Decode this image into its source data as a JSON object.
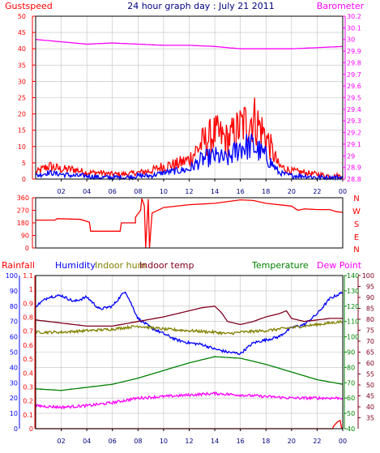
{
  "title": "24 hour graph day : July 21 2011",
  "colors": {
    "background": "#ffffff",
    "frame": "#000000",
    "grid": "#c0c0c0",
    "gust": "#ff0000",
    "wind_avg": "#0000ff",
    "barometer": "#ff00ff",
    "direction": "#ff0000",
    "rainfall": "#ff0000",
    "humidity": "#0000ff",
    "indoor_hum": "#808000",
    "indoor_temp": "#800020",
    "temperature": "#008000",
    "dew_point": "#ff00ff",
    "tick_text": "#000080",
    "temp_axis_text": "#800020"
  },
  "x_labels": [
    "02",
    "04",
    "06",
    "08",
    "10",
    "12",
    "14",
    "16",
    "18",
    "20",
    "22",
    "00"
  ],
  "chart_data": [
    {
      "type": "line",
      "name": "wind-barometer",
      "x_hours": [
        0,
        24
      ],
      "left_axis": {
        "label": "Gustspeed",
        "ylim": [
          0,
          50
        ],
        "ticks": [
          "0",
          "5",
          "10",
          "15",
          "20",
          "25",
          "30",
          "35",
          "40",
          "45",
          "50"
        ]
      },
      "right_axis": {
        "label": "Barometer",
        "ylim": [
          28.8,
          30.2
        ],
        "ticks": [
          "28.8",
          "28.9",
          "29",
          "29.1",
          "29.2",
          "29.3",
          "29.4",
          "29.5",
          "29.6",
          "29.7",
          "29.8",
          "29.9",
          "30",
          "30.1",
          "30.2"
        ]
      },
      "grid": true,
      "series": [
        {
          "name": "Gustspeed",
          "axis": "left",
          "color_key": "gust",
          "style": "noisy",
          "points": [
            [
              0,
              2
            ],
            [
              1,
              4
            ],
            [
              2,
              3
            ],
            [
              3,
              3
            ],
            [
              4,
              2
            ],
            [
              5,
              2
            ],
            [
              6,
              1.5
            ],
            [
              7,
              1.5
            ],
            [
              8,
              2
            ],
            [
              9,
              2.5
            ],
            [
              10,
              4
            ],
            [
              11,
              4.5
            ],
            [
              12,
              6
            ],
            [
              13,
              11
            ],
            [
              14,
              14
            ],
            [
              15,
              12
            ],
            [
              16,
              16
            ],
            [
              17,
              19
            ],
            [
              18,
              13
            ],
            [
              19,
              4
            ],
            [
              20,
              2.5
            ],
            [
              21,
              2
            ],
            [
              22,
              1.5
            ],
            [
              23,
              1
            ],
            [
              24,
              1
            ]
          ]
        },
        {
          "name": "Wind speed",
          "axis": "left",
          "color_key": "wind_avg",
          "style": "noisy",
          "points": [
            [
              0,
              1
            ],
            [
              1,
              2
            ],
            [
              2,
              1.5
            ],
            [
              3,
              1
            ],
            [
              4,
              1
            ],
            [
              5,
              0.5
            ],
            [
              6,
              0.5
            ],
            [
              7,
              0.5
            ],
            [
              8,
              1
            ],
            [
              9,
              1
            ],
            [
              10,
              2
            ],
            [
              11,
              2.5
            ],
            [
              12,
              3
            ],
            [
              13,
              6
            ],
            [
              14,
              7
            ],
            [
              15,
              6
            ],
            [
              16,
              10
            ],
            [
              17,
              10
            ],
            [
              18,
              7
            ],
            [
              19,
              2
            ],
            [
              20,
              1
            ],
            [
              21,
              1
            ],
            [
              22,
              0.5
            ],
            [
              23,
              0.5
            ],
            [
              24,
              0.5
            ]
          ]
        },
        {
          "name": "Barometer",
          "axis": "right",
          "color_key": "barometer",
          "style": "smooth",
          "points": [
            [
              0,
              30.0
            ],
            [
              2,
              29.98
            ],
            [
              4,
              29.96
            ],
            [
              6,
              29.97
            ],
            [
              8,
              29.96
            ],
            [
              10,
              29.95
            ],
            [
              12,
              29.95
            ],
            [
              14,
              29.94
            ],
            [
              16,
              29.92
            ],
            [
              18,
              29.92
            ],
            [
              20,
              29.92
            ],
            [
              22,
              29.93
            ],
            [
              24,
              29.94
            ]
          ]
        }
      ]
    },
    {
      "type": "line",
      "name": "wind-direction",
      "x_hours": [
        0,
        24
      ],
      "left_axis": {
        "ylim": [
          0,
          360
        ],
        "ticks": [
          "0",
          "90",
          "180",
          "270",
          "360"
        ]
      },
      "right_labels": [
        "N",
        "W",
        "S",
        "E",
        "N"
      ],
      "grid": false,
      "series": [
        {
          "name": "Wind direction",
          "color_key": "direction",
          "style": "step",
          "points": [
            [
              0,
              200
            ],
            [
              1.5,
              200
            ],
            [
              1.7,
              210
            ],
            [
              3.5,
              205
            ],
            [
              4.2,
              185
            ],
            [
              4.3,
              120
            ],
            [
              6.6,
              120
            ],
            [
              6.7,
              180
            ],
            [
              7.8,
              180
            ],
            [
              7.8,
              220
            ],
            [
              8.2,
              270
            ],
            [
              8.3,
              355
            ],
            [
              8.5,
              300
            ],
            [
              8.6,
              0
            ],
            [
              8.8,
              350
            ],
            [
              8.9,
              0
            ],
            [
              9.1,
              250
            ],
            [
              10,
              290
            ],
            [
              12,
              310
            ],
            [
              14,
              320
            ],
            [
              16,
              345
            ],
            [
              17,
              340
            ],
            [
              18,
              320
            ],
            [
              20,
              300
            ],
            [
              20.5,
              270
            ],
            [
              21,
              280
            ],
            [
              22,
              275
            ],
            [
              23,
              275
            ],
            [
              23.5,
              260
            ],
            [
              24,
              255
            ]
          ]
        }
      ]
    },
    {
      "type": "line",
      "name": "humidity-temperature",
      "x_hours": [
        0,
        24
      ],
      "axes": {
        "rainfall": {
          "label": "Rainfall",
          "ylim": [
            0,
            1.1
          ],
          "ticks": [
            "0",
            "0.1",
            "0.2",
            "0.3",
            "0.4",
            "0.5",
            "0.6",
            "0.7",
            "0.8",
            "0.9",
            "1",
            "1.1"
          ]
        },
        "humidity": {
          "label": "Humidity",
          "ylim": [
            0,
            100
          ],
          "ticks": [
            "0",
            "10",
            "20",
            "30",
            "40",
            "50",
            "60",
            "70",
            "80",
            "90",
            "100"
          ]
        },
        "temperature": {
          "label": "Temperature",
          "ylim": [
            40,
            140
          ],
          "ticks": [
            "40",
            "50",
            "60",
            "70",
            "80",
            "90",
            "100",
            "110",
            "120",
            "130",
            "140"
          ]
        },
        "dewpoint": {
          "label": "Dew Point",
          "ylim": [
            30,
            100
          ],
          "ticks": [
            "35",
            "40",
            "45",
            "50",
            "55",
            "60",
            "65",
            "70",
            "75",
            "80",
            "85",
            "90",
            "95",
            "100"
          ]
        }
      },
      "legend": [
        "Rainfall",
        "Humidity",
        "Indoor hum",
        "Indoor temp",
        "Temperature",
        "Dew Point"
      ],
      "grid": true,
      "series": [
        {
          "name": "Humidity",
          "axis": "humidity",
          "color_key": "humidity",
          "style": "noisy",
          "points": [
            [
              0,
              80
            ],
            [
              1,
              86
            ],
            [
              2,
              87
            ],
            [
              3,
              83
            ],
            [
              4,
              86
            ],
            [
              5,
              78
            ],
            [
              6,
              80
            ],
            [
              7,
              90
            ],
            [
              8,
              72
            ],
            [
              9,
              66
            ],
            [
              10,
              62
            ],
            [
              11,
              58
            ],
            [
              12,
              56
            ],
            [
              13,
              55
            ],
            [
              14,
              52
            ],
            [
              15,
              50
            ],
            [
              16,
              49
            ],
            [
              17,
              56
            ],
            [
              18,
              58
            ],
            [
              19,
              60
            ],
            [
              20,
              66
            ],
            [
              21,
              68
            ],
            [
              22,
              75
            ],
            [
              23,
              85
            ],
            [
              24,
              89
            ]
          ]
        },
        {
          "name": "Indoor hum",
          "axis": "humidity",
          "color_key": "indoor_hum",
          "style": "noisy",
          "points": [
            [
              0,
              63
            ],
            [
              2,
              63
            ],
            [
              4,
              64
            ],
            [
              6,
              65
            ],
            [
              8,
              67
            ],
            [
              10,
              65
            ],
            [
              12,
              64
            ],
            [
              14,
              63
            ],
            [
              15,
              62
            ],
            [
              16,
              63
            ],
            [
              18,
              64
            ],
            [
              20,
              66
            ],
            [
              22,
              68
            ],
            [
              24,
              70
            ]
          ]
        },
        {
          "name": "Indoor temp",
          "axis": "humidity",
          "color_key": "indoor_temp",
          "style": "smooth",
          "points": [
            [
              0,
              71
            ],
            [
              2,
              69
            ],
            [
              4,
              67
            ],
            [
              6,
              67
            ],
            [
              8,
              70
            ],
            [
              10,
              73
            ],
            [
              12,
              77
            ],
            [
              13,
              79
            ],
            [
              14,
              80
            ],
            [
              14.5,
              76
            ],
            [
              15,
              70
            ],
            [
              16,
              68
            ],
            [
              17,
              70
            ],
            [
              18,
              73
            ],
            [
              19,
              75
            ],
            [
              19.6,
              77
            ],
            [
              20,
              72
            ],
            [
              21,
              70
            ],
            [
              22,
              71
            ],
            [
              23,
              72
            ],
            [
              24,
              72
            ]
          ]
        },
        {
          "name": "Temperature",
          "axis": "humidity",
          "color_key": "temperature",
          "style": "smooth",
          "points": [
            [
              0,
              26
            ],
            [
              2,
              25
            ],
            [
              4,
              27
            ],
            [
              6,
              29
            ],
            [
              8,
              33
            ],
            [
              10,
              38
            ],
            [
              12,
              43
            ],
            [
              14,
              47
            ],
            [
              16,
              46
            ],
            [
              18,
              42
            ],
            [
              20,
              37
            ],
            [
              22,
              32
            ],
            [
              24,
              29
            ]
          ]
        },
        {
          "name": "Dew Point",
          "axis": "humidity",
          "color_key": "dew_point",
          "style": "noisy",
          "points": [
            [
              0,
              15
            ],
            [
              2,
              14
            ],
            [
              4,
              15
            ],
            [
              6,
              17
            ],
            [
              8,
              20
            ],
            [
              10,
              21
            ],
            [
              12,
              22
            ],
            [
              14,
              23
            ],
            [
              16,
              22
            ],
            [
              18,
              21
            ],
            [
              20,
              20
            ],
            [
              22,
              20
            ],
            [
              24,
              20
            ]
          ]
        },
        {
          "name": "Rainfall",
          "axis": "rainfall",
          "color_key": "rainfall",
          "style": "step",
          "points": [
            [
              0,
              0
            ],
            [
              23.2,
              0
            ],
            [
              23.3,
              0.02
            ],
            [
              23.6,
              0.05
            ],
            [
              23.8,
              0.06
            ],
            [
              23.9,
              0.01
            ],
            [
              24,
              0.0
            ]
          ]
        }
      ]
    }
  ]
}
